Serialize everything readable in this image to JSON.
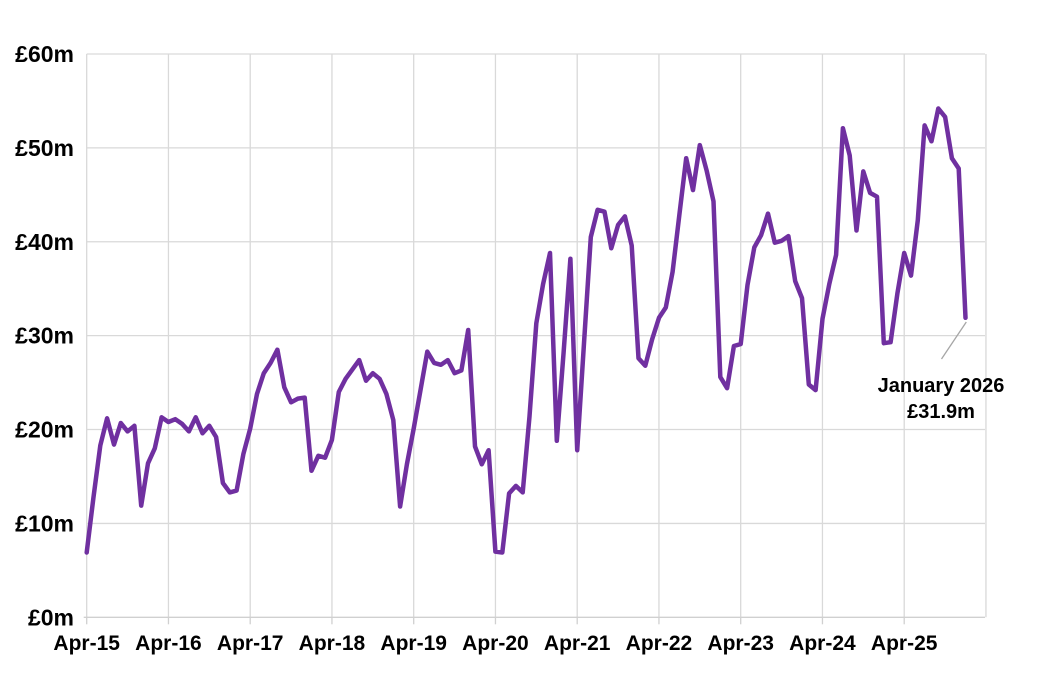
{
  "chart_data": {
    "type": "line",
    "title": "",
    "xlabel": "",
    "ylabel": "",
    "unit": "GBP millions per month",
    "ylim": [
      0,
      60
    ],
    "grid": true,
    "legend": "none",
    "line_color": "#7030A0",
    "y_tick_labels": [
      "£0m",
      "£10m",
      "£20m",
      "£30m",
      "£40m",
      "£50m",
      "£60m"
    ],
    "x_tick_labels": [
      "Apr-15",
      "Apr-16",
      "Apr-17",
      "Apr-18",
      "Apr-19",
      "Apr-20",
      "Apr-21",
      "Apr-22",
      "Apr-23",
      "Apr-24",
      "Apr-25"
    ],
    "months": [
      "2015-04",
      "2015-05",
      "2015-06",
      "2015-07",
      "2015-08",
      "2015-09",
      "2015-10",
      "2015-11",
      "2015-12",
      "2016-01",
      "2016-02",
      "2016-03",
      "2016-04",
      "2016-05",
      "2016-06",
      "2016-07",
      "2016-08",
      "2016-09",
      "2016-10",
      "2016-11",
      "2016-12",
      "2017-01",
      "2017-02",
      "2017-03",
      "2017-04",
      "2017-05",
      "2017-06",
      "2017-07",
      "2017-08",
      "2017-09",
      "2017-10",
      "2017-11",
      "2017-12",
      "2018-01",
      "2018-02",
      "2018-03",
      "2018-04",
      "2018-05",
      "2018-06",
      "2018-07",
      "2018-08",
      "2018-09",
      "2018-10",
      "2018-11",
      "2018-12",
      "2019-01",
      "2019-02",
      "2019-03",
      "2019-04",
      "2019-05",
      "2019-06",
      "2019-07",
      "2019-08",
      "2019-09",
      "2019-10",
      "2019-11",
      "2019-12",
      "2020-01",
      "2020-02",
      "2020-03",
      "2020-04",
      "2020-05",
      "2020-06",
      "2020-07",
      "2020-08",
      "2020-09",
      "2020-10",
      "2020-11",
      "2020-12",
      "2021-01",
      "2021-02",
      "2021-03",
      "2021-04",
      "2021-05",
      "2021-06",
      "2021-07",
      "2021-08",
      "2021-09",
      "2021-10",
      "2021-11",
      "2021-12",
      "2022-01",
      "2022-02",
      "2022-03",
      "2022-04",
      "2022-05",
      "2022-06",
      "2022-07",
      "2022-08",
      "2022-09",
      "2022-10",
      "2022-11",
      "2022-12",
      "2023-01",
      "2023-02",
      "2023-03",
      "2023-04",
      "2023-05",
      "2023-06",
      "2023-07",
      "2023-08",
      "2023-09",
      "2023-10",
      "2023-11",
      "2023-12",
      "2024-01",
      "2024-02",
      "2024-03",
      "2024-04",
      "2024-05",
      "2024-06",
      "2024-07",
      "2024-08",
      "2024-09",
      "2024-10",
      "2024-11",
      "2024-12",
      "2025-01",
      "2025-02",
      "2025-03",
      "2025-04",
      "2025-05",
      "2025-06",
      "2025-07",
      "2025-08",
      "2025-09",
      "2025-10",
      "2025-11",
      "2025-12",
      "2026-01"
    ],
    "values": [
      6.9,
      12.8,
      18.3,
      21.2,
      18.4,
      20.7,
      19.8,
      20.4,
      11.9,
      16.4,
      18.0,
      21.3,
      20.8,
      21.1,
      20.6,
      19.8,
      21.3,
      19.6,
      20.4,
      19.2,
      14.3,
      13.3,
      13.5,
      17.4,
      20.1,
      23.8,
      26.0,
      27.1,
      28.5,
      24.5,
      22.9,
      23.3,
      23.4,
      15.6,
      17.2,
      17.0,
      18.9,
      24.0,
      25.4,
      26.4,
      27.4,
      25.2,
      26.0,
      25.4,
      23.8,
      21.0,
      11.8,
      16.3,
      20.1,
      24.2,
      28.3,
      27.1,
      26.9,
      27.4,
      26.0,
      26.3,
      30.6,
      18.2,
      16.3,
      17.8,
      7.0,
      6.9,
      13.2,
      14.0,
      13.3,
      21.4,
      31.3,
      35.5,
      38.8,
      18.8,
      28.2,
      38.2,
      17.8,
      29.2,
      40.5,
      43.4,
      43.2,
      39.3,
      41.8,
      42.7,
      39.6,
      27.6,
      26.8,
      29.6,
      31.9,
      33.0,
      36.8,
      42.9,
      48.9,
      45.5,
      50.3,
      47.6,
      44.3,
      25.6,
      24.4,
      28.9,
      29.1,
      35.4,
      39.4,
      40.7,
      43.0,
      39.9,
      40.1,
      40.6,
      35.8,
      34.0,
      24.8,
      24.2,
      31.8,
      35.5,
      38.6,
      52.1,
      49.2,
      41.2,
      47.5,
      45.2,
      44.8,
      29.2,
      29.3,
      34.5,
      38.8,
      36.4,
      42.3,
      52.4,
      50.7,
      54.2,
      53.3,
      48.9,
      47.8,
      31.9
    ],
    "annotation": {
      "line1": "January 2026",
      "line2": "£31.9m",
      "anchor_month": "2026-01",
      "anchor_value": 31.9
    }
  },
  "colors": {
    "line": "#7030A0",
    "gridline": "#d9d9d9",
    "axis_line": "#d0d0d0",
    "leader_line": "#a6a6a6",
    "label_text": "#000000",
    "background": "#ffffff"
  }
}
